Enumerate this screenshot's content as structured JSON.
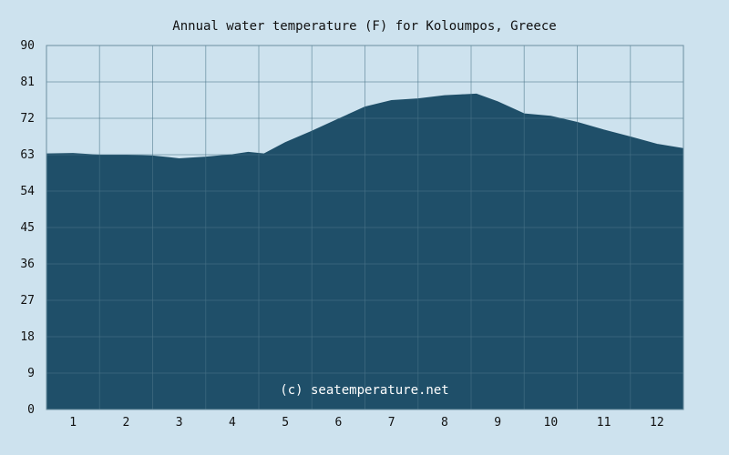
{
  "chart_data": {
    "type": "area",
    "title": "Annual water temperature (F) for Koloumpos, Greece",
    "watermark": "(c) seatemperature.net",
    "xlabel": "",
    "ylabel": "",
    "xlim": [
      0.5,
      12.5
    ],
    "ylim": [
      0,
      90
    ],
    "x_ticks": [
      1,
      2,
      3,
      4,
      5,
      6,
      7,
      8,
      9,
      10,
      11,
      12
    ],
    "y_ticks": [
      0,
      9,
      18,
      27,
      36,
      45,
      54,
      63,
      72,
      81,
      90
    ],
    "grid": true,
    "series": [
      {
        "x": [
          0.5,
          1.0,
          1.5,
          2.0,
          2.5,
          2.8,
          3.0,
          3.5,
          4.0,
          4.3,
          4.6,
          5.0,
          5.5,
          6.0,
          6.5,
          7.0,
          7.5,
          8.0,
          8.3,
          8.6,
          9.0,
          9.5,
          10.0,
          10.5,
          11.0,
          11.5,
          12.0,
          12.5
        ],
        "values": [
          63.2,
          63.3,
          62.9,
          62.9,
          62.7,
          62.3,
          62.0,
          62.4,
          63.0,
          63.6,
          63.2,
          66.0,
          68.8,
          71.8,
          74.8,
          76.4,
          76.8,
          77.6,
          77.8,
          78.0,
          76.1,
          73.1,
          72.5,
          71.0,
          69.1,
          67.4,
          65.6,
          64.5
        ]
      }
    ],
    "colors": {
      "background": "#cde2ee",
      "area_fill": "#1f4f69",
      "grid_line": "#4a7588",
      "axis_line": "#6b8fa0"
    }
  }
}
